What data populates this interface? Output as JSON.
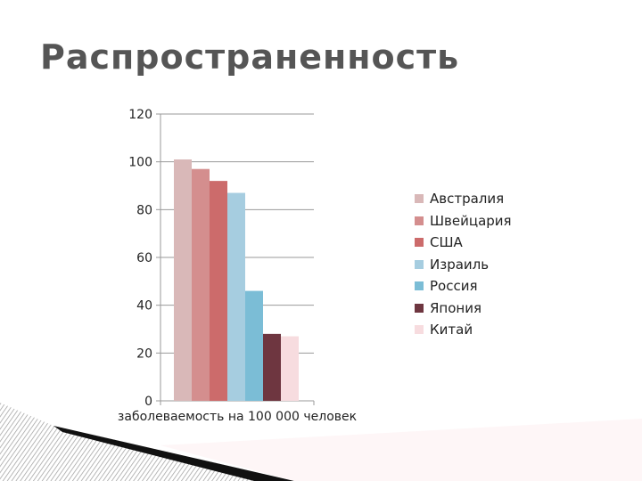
{
  "slide": {
    "title": "Распространенность"
  },
  "chart_data": {
    "type": "bar",
    "categories": [
      "заболеваемость на 100 000 человек"
    ],
    "series": [
      {
        "name": "Австралия",
        "values": [
          101
        ],
        "color": "#D9B8B8"
      },
      {
        "name": "Швейцария",
        "values": [
          97
        ],
        "color": "#D48E8E"
      },
      {
        "name": "США",
        "values": [
          92
        ],
        "color": "#CC6B6B"
      },
      {
        "name": "Израиль",
        "values": [
          87
        ],
        "color": "#A6CDE0"
      },
      {
        "name": "Россия",
        "values": [
          46
        ],
        "color": "#7BBDD6"
      },
      {
        "name": "Япония",
        "values": [
          28
        ],
        "color": "#6E3640"
      },
      {
        "name": "Китай",
        "values": [
          27
        ],
        "color": "#F7DCDF"
      }
    ],
    "ylim": [
      0,
      120
    ],
    "yticks": [
      "0",
      "20",
      "40",
      "60",
      "80",
      "100",
      "120"
    ],
    "title": "",
    "xlabel": "",
    "ylabel": "",
    "grid": true,
    "legend": "right"
  }
}
